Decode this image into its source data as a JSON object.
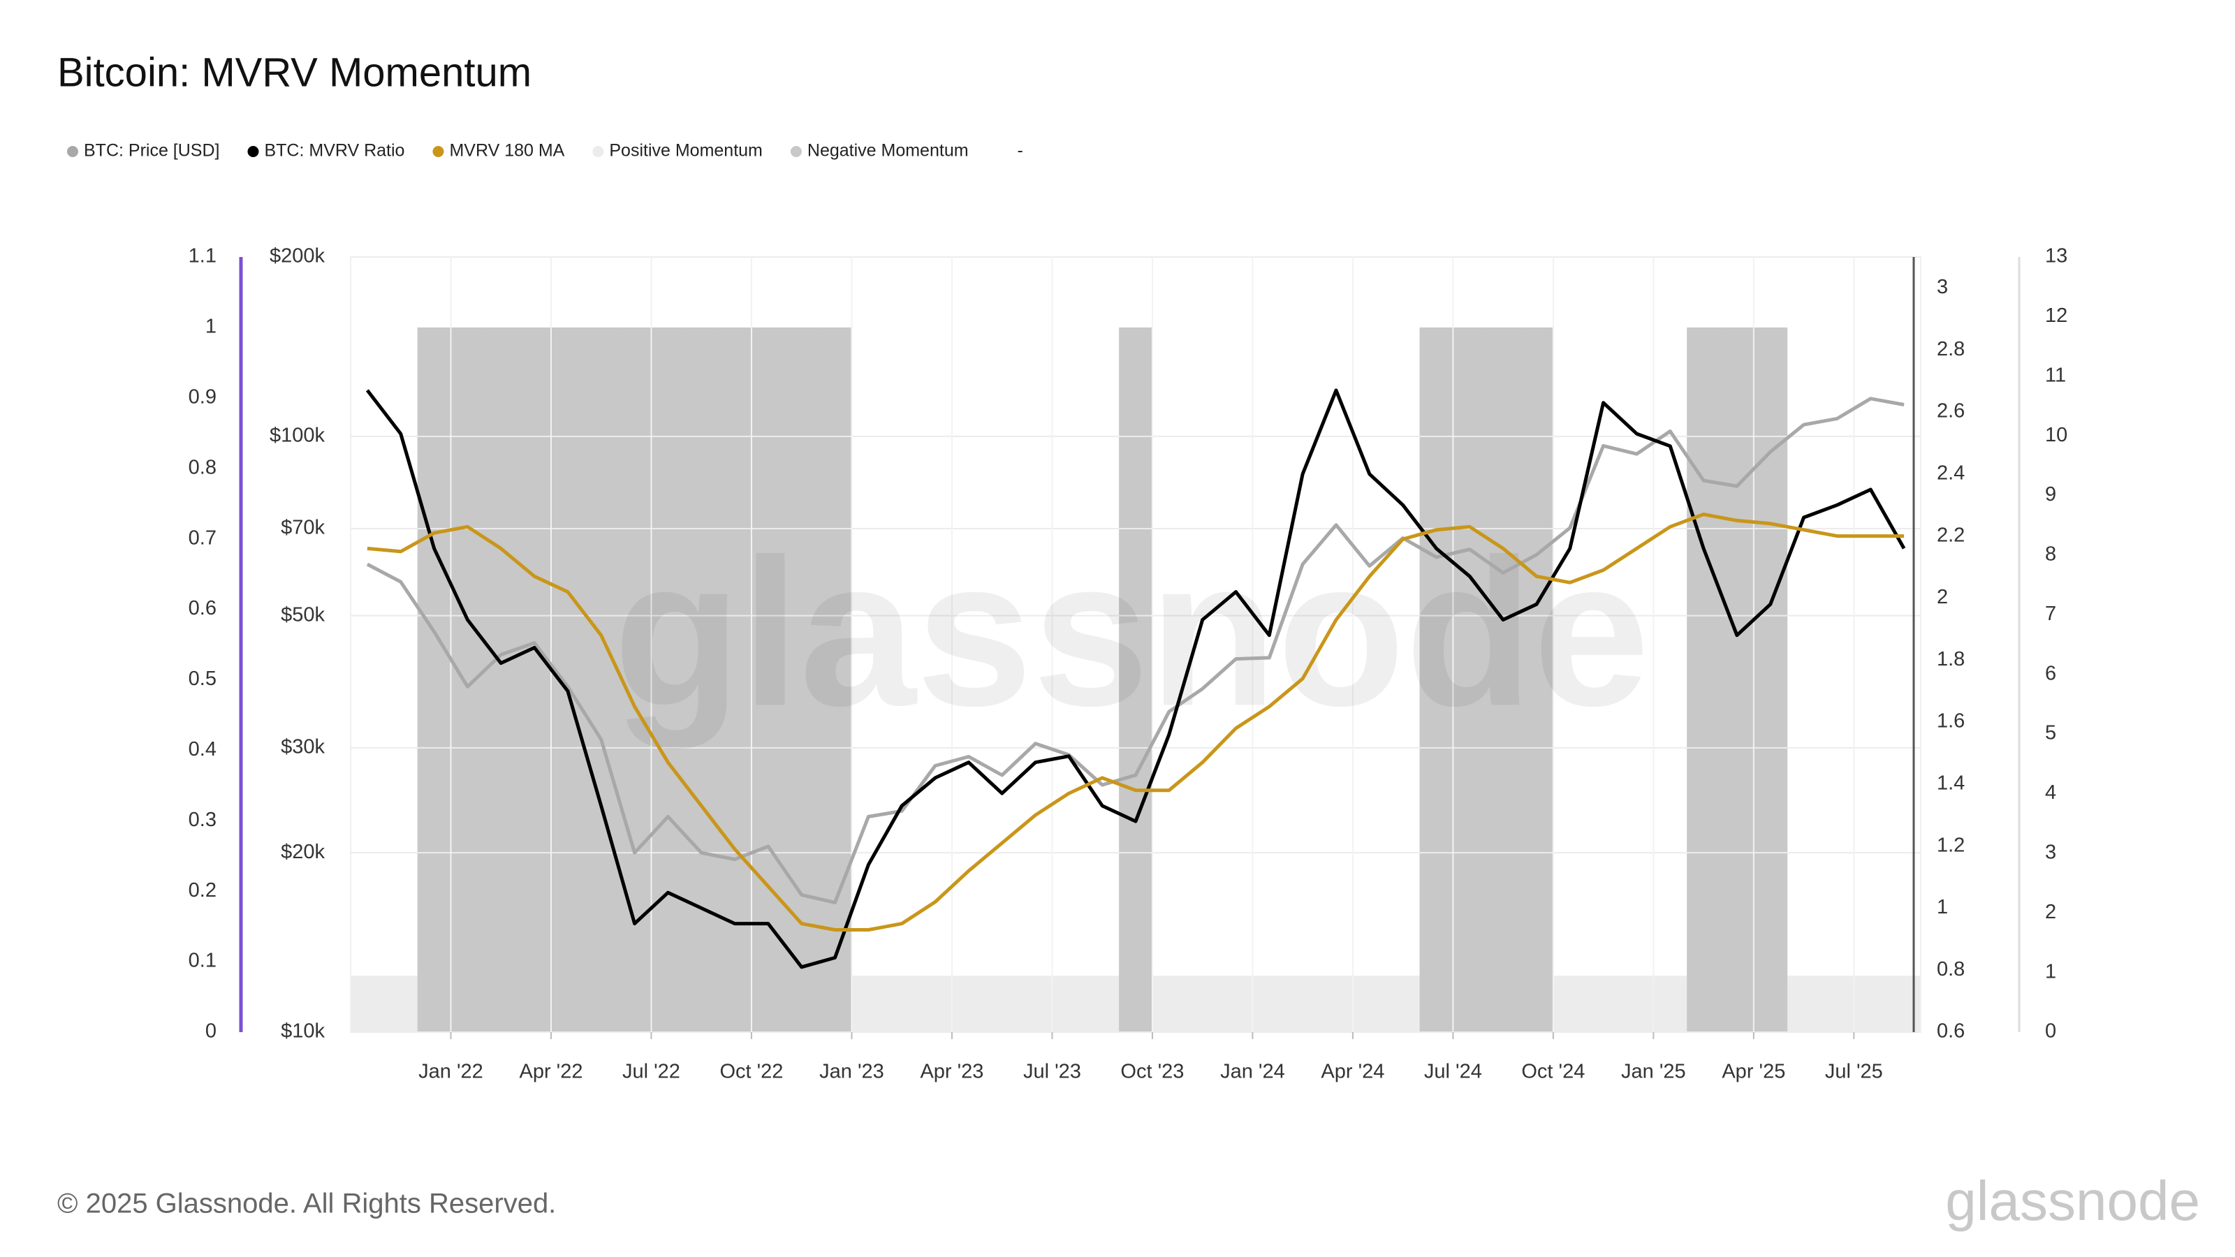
{
  "chart_data": {
    "type": "line",
    "title": "Bitcoin: MVRV Momentum",
    "x": [
      "2021-10",
      "2021-11",
      "2021-12",
      "2022-01",
      "2022-02",
      "2022-03",
      "2022-04",
      "2022-05",
      "2022-06",
      "2022-07",
      "2022-08",
      "2022-09",
      "2022-10",
      "2022-11",
      "2022-12",
      "2023-01",
      "2023-02",
      "2023-03",
      "2023-04",
      "2023-05",
      "2023-06",
      "2023-07",
      "2023-08",
      "2023-09",
      "2023-10",
      "2023-11",
      "2023-12",
      "2024-01",
      "2024-02",
      "2024-03",
      "2024-04",
      "2024-05",
      "2024-06",
      "2024-07",
      "2024-08",
      "2024-09",
      "2024-10",
      "2024-11",
      "2024-12",
      "2025-01",
      "2025-02",
      "2025-03",
      "2025-04",
      "2025-05",
      "2025-06",
      "2025-07",
      "2025-08"
    ],
    "xlim": [
      "2021-10",
      "2025-09"
    ],
    "xticks": [
      {
        "value": "2022-01",
        "label": "Jan '22"
      },
      {
        "value": "2022-04",
        "label": "Apr '22"
      },
      {
        "value": "2022-07",
        "label": "Jul '22"
      },
      {
        "value": "2022-10",
        "label": "Oct '22"
      },
      {
        "value": "2023-01",
        "label": "Jan '23"
      },
      {
        "value": "2023-04",
        "label": "Apr '23"
      },
      {
        "value": "2023-07",
        "label": "Jul '23"
      },
      {
        "value": "2023-10",
        "label": "Oct '23"
      },
      {
        "value": "2024-01",
        "label": "Jan '24"
      },
      {
        "value": "2024-04",
        "label": "Apr '24"
      },
      {
        "value": "2024-07",
        "label": "Jul '24"
      },
      {
        "value": "2024-10",
        "label": "Oct '24"
      },
      {
        "value": "2025-01",
        "label": "Jan '25"
      },
      {
        "value": "2025-04",
        "label": "Apr '25"
      },
      {
        "value": "2025-07",
        "label": "Jul '25"
      }
    ],
    "ylim": [
      0,
      1.1
    ],
    "yticks": [
      0,
      0.1,
      0.2,
      0.3,
      0.4,
      0.5,
      0.6,
      0.7,
      0.8,
      0.9,
      1,
      1.1
    ],
    "y2lim": [
      0.6,
      3.1
    ],
    "y2ticks": [
      0.6,
      0.8,
      1,
      1.2,
      1.4,
      1.6,
      1.8,
      2,
      2.2,
      2.4,
      2.6,
      2.8,
      3
    ],
    "y3lim": [
      10000,
      200000
    ],
    "y3log": true,
    "y3ticks": [
      {
        "value": 10000,
        "label": "$10k"
      },
      {
        "value": 20000,
        "label": "$20k"
      },
      {
        "value": 30000,
        "label": "$30k"
      },
      {
        "value": 50000,
        "label": "$50k"
      },
      {
        "value": 70000,
        "label": "$70k"
      },
      {
        "value": 100000,
        "label": "$100k"
      },
      {
        "value": 200000,
        "label": "$200k"
      }
    ],
    "y4lim": [
      0,
      13
    ],
    "y4ticks": [
      0,
      1,
      2,
      3,
      4,
      5,
      6,
      7,
      8,
      9,
      10,
      11,
      12,
      13
    ],
    "grid": true,
    "series": [
      {
        "name": "BTC: Price [USD]",
        "color": "#a8a8a8",
        "axis": "y3",
        "kind": "line",
        "values": [
          61000,
          57000,
          47000,
          38000,
          43000,
          45000,
          38000,
          31000,
          20000,
          23000,
          20000,
          19500,
          20500,
          17000,
          16500,
          23000,
          23500,
          28000,
          29000,
          27000,
          30500,
          29200,
          26000,
          27000,
          34500,
          37700,
          42300,
          42500,
          61000,
          71000,
          60600,
          67500,
          62700,
          64600,
          59000,
          63300,
          70200,
          96400,
          93400,
          102000,
          84300,
          82500,
          94200,
          104600,
          107100,
          115700,
          113000
        ]
      },
      {
        "name": "BTC: MVRV Ratio",
        "color": "#000000",
        "axis": "y2",
        "kind": "line",
        "values": [
          2.67,
          2.53,
          2.16,
          1.93,
          1.79,
          1.84,
          1.7,
          1.33,
          0.95,
          1.05,
          1,
          0.95,
          0.95,
          0.81,
          0.84,
          1.14,
          1.33,
          1.42,
          1.47,
          1.37,
          1.47,
          1.49,
          1.33,
          1.28,
          1.56,
          1.93,
          2.02,
          1.88,
          2.4,
          2.67,
          2.4,
          2.3,
          2.16,
          2.07,
          1.93,
          1.98,
          2.16,
          2.63,
          2.53,
          2.49,
          2.16,
          1.88,
          1.98,
          2.26,
          2.3,
          2.35,
          2.16
        ]
      },
      {
        "name": "MVRV 180 MA",
        "color": "#c9961a",
        "axis": "y2",
        "kind": "line",
        "values": [
          2.16,
          2.15,
          2.21,
          2.23,
          2.16,
          2.07,
          2.02,
          1.88,
          1.65,
          1.47,
          1.33,
          1.19,
          1.07,
          0.95,
          0.93,
          0.93,
          0.95,
          1.02,
          1.12,
          1.21,
          1.3,
          1.37,
          1.42,
          1.38,
          1.38,
          1.47,
          1.58,
          1.65,
          1.74,
          1.93,
          2.07,
          2.19,
          2.22,
          2.23,
          2.16,
          2.07,
          2.05,
          2.09,
          2.16,
          2.23,
          2.27,
          2.25,
          2.24,
          2.22,
          2.2,
          2.2,
          2.2
        ]
      },
      {
        "name": "Positive Momentum",
        "color": "#ececec",
        "axis": "y",
        "kind": "band",
        "values": [
          0.08,
          0.08,
          0,
          0,
          0,
          0,
          0,
          0,
          0,
          0,
          0,
          0,
          0,
          0,
          0,
          0.08,
          0.08,
          0.08,
          0.08,
          0.08,
          0.08,
          0.08,
          0.08,
          0,
          0.08,
          0.08,
          0.08,
          0.08,
          0.08,
          0.08,
          0.08,
          0.08,
          0,
          0,
          0,
          0,
          0.08,
          0.08,
          0.08,
          0.08,
          0,
          0,
          0,
          0.08,
          0.08,
          0.08,
          0.08
        ]
      },
      {
        "name": "Negative Momentum",
        "color": "#c8c8c8",
        "axis": "y",
        "kind": "band",
        "values": [
          0,
          0,
          1,
          1,
          1,
          1,
          1,
          1,
          1,
          1,
          1,
          1,
          1,
          1,
          1,
          0,
          0,
          0,
          0,
          0,
          0,
          0,
          0,
          1,
          0,
          0,
          0,
          0,
          0,
          0,
          0,
          0,
          1,
          1,
          1,
          1,
          0,
          0,
          0,
          0,
          1,
          1,
          1,
          0,
          0,
          0,
          0
        ]
      }
    ]
  },
  "legend_extra_label": "-",
  "watermark": "glassnode",
  "footer": "© 2025 Glassnode. All Rights Reserved.",
  "logo": "glassnode"
}
